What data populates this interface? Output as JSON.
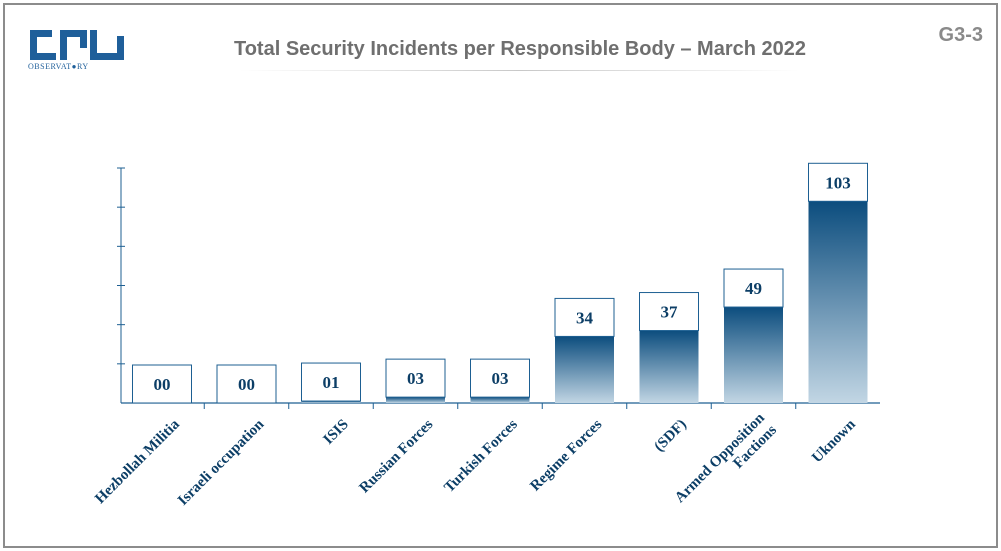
{
  "header": {
    "title": "Total Security Incidents per Responsible Body – March 2022",
    "code": "G3-3",
    "logo_subtext": "OBSERVAT●RY"
  },
  "colors": {
    "bar_top": "#0c4d7e",
    "bar_bottom": "#c2d6e4",
    "label_text": "#0c3e66",
    "axis": "#1d5f92",
    "box_border": "#1d5f92",
    "title": "#6f6f6f",
    "logo": "#1f5f9a"
  },
  "chart_data": {
    "type": "bar",
    "title": "Total Security Incidents per Responsible Body – March 2022",
    "xlabel": "",
    "ylabel": "",
    "grid": false,
    "ylim": [
      0,
      120
    ],
    "categories": [
      "Hezbollah Militia",
      "Israeli occupation",
      "ISIS",
      "Russian Forces",
      "Turkish Forces",
      "Regime Forces",
      "(SDF)",
      "Armed Opposition Factions",
      "Uknown"
    ],
    "values": [
      0,
      0,
      1,
      3,
      3,
      34,
      37,
      49,
      103
    ],
    "data_labels": [
      "00",
      "00",
      "01",
      "03",
      "03",
      "34",
      "37",
      "49",
      "103"
    ]
  }
}
